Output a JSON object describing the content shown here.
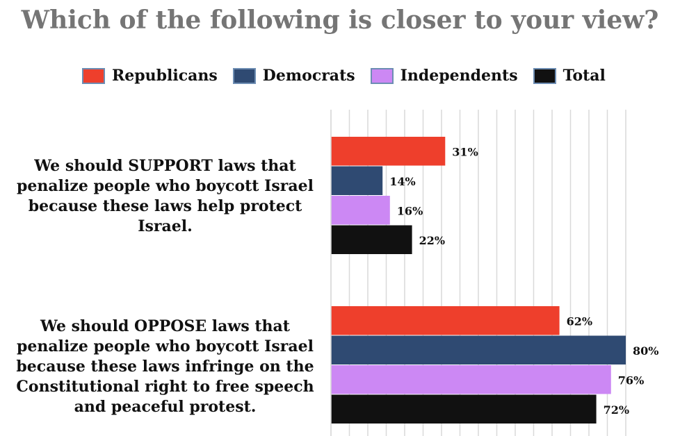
{
  "chart_data": {
    "type": "bar",
    "orientation": "horizontal",
    "title": "Which of the following is closer to your view?",
    "categories": [
      "We should SUPPORT laws that penalize people who boycott Israel because these laws help protect Israel.",
      "We should OPPOSE laws that penalize people who boycott Israel because these laws infringe on the Constitutional right to free speech and peaceful protest."
    ],
    "series": [
      {
        "name": "Republicans",
        "color": "#ee3f2c",
        "values": [
          31,
          62
        ],
        "labels": [
          "31%",
          "62%"
        ]
      },
      {
        "name": "Democrats",
        "color": "#2f4a72",
        "values": [
          14,
          80
        ],
        "labels": [
          "14%",
          "80%"
        ]
      },
      {
        "name": "Independents",
        "color": "#cc88f4",
        "values": [
          16,
          76
        ],
        "labels": [
          "16%",
          "76%"
        ]
      },
      {
        "name": "Total",
        "color": "#111111",
        "values": [
          22,
          72
        ],
        "labels": [
          "22%",
          "72%"
        ]
      }
    ],
    "xlim": [
      0,
      80
    ],
    "grid": true,
    "legend_position": "top"
  }
}
